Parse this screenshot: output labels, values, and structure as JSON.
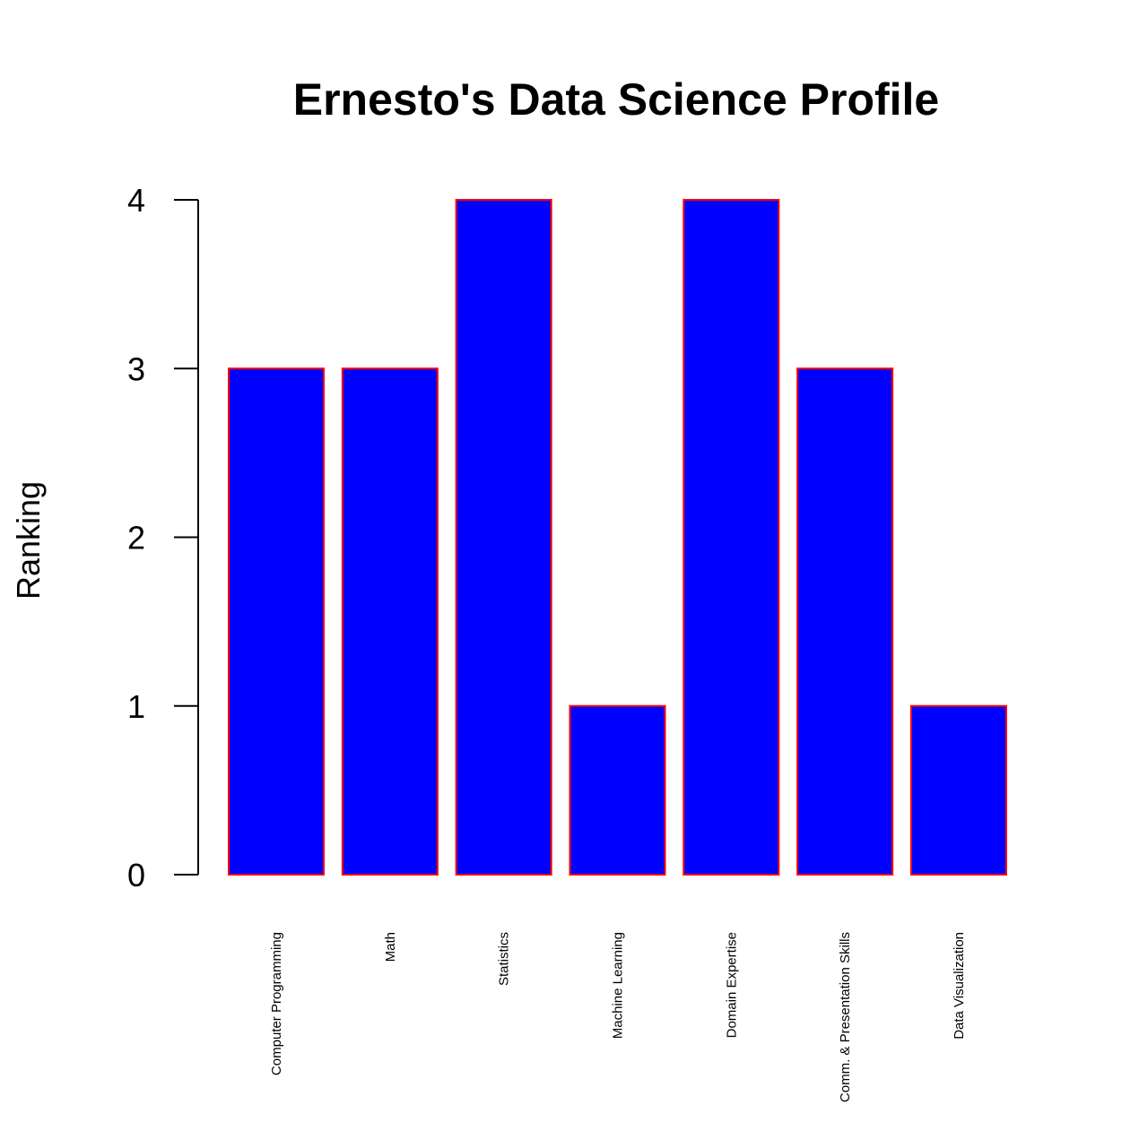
{
  "chart_data": {
    "type": "bar",
    "title": "Ernesto's Data Science Profile",
    "xlabel": "",
    "ylabel": "Ranking",
    "categories": [
      "Computer Programming",
      "Math",
      "Statistics",
      "Machine Learning",
      "Domain Expertise",
      "Comm. & Presentation Skills",
      "Data Visualization"
    ],
    "values": [
      3,
      3,
      4,
      1,
      4,
      3,
      1
    ],
    "ylim": [
      0,
      4
    ],
    "yticks": [
      0,
      1,
      2,
      3,
      4
    ],
    "grid": false,
    "legend": "none",
    "colors": {
      "bar_fill": "#0000ff",
      "bar_border": "#ff0000",
      "axis": "#000000",
      "background": "#ffffff"
    }
  }
}
